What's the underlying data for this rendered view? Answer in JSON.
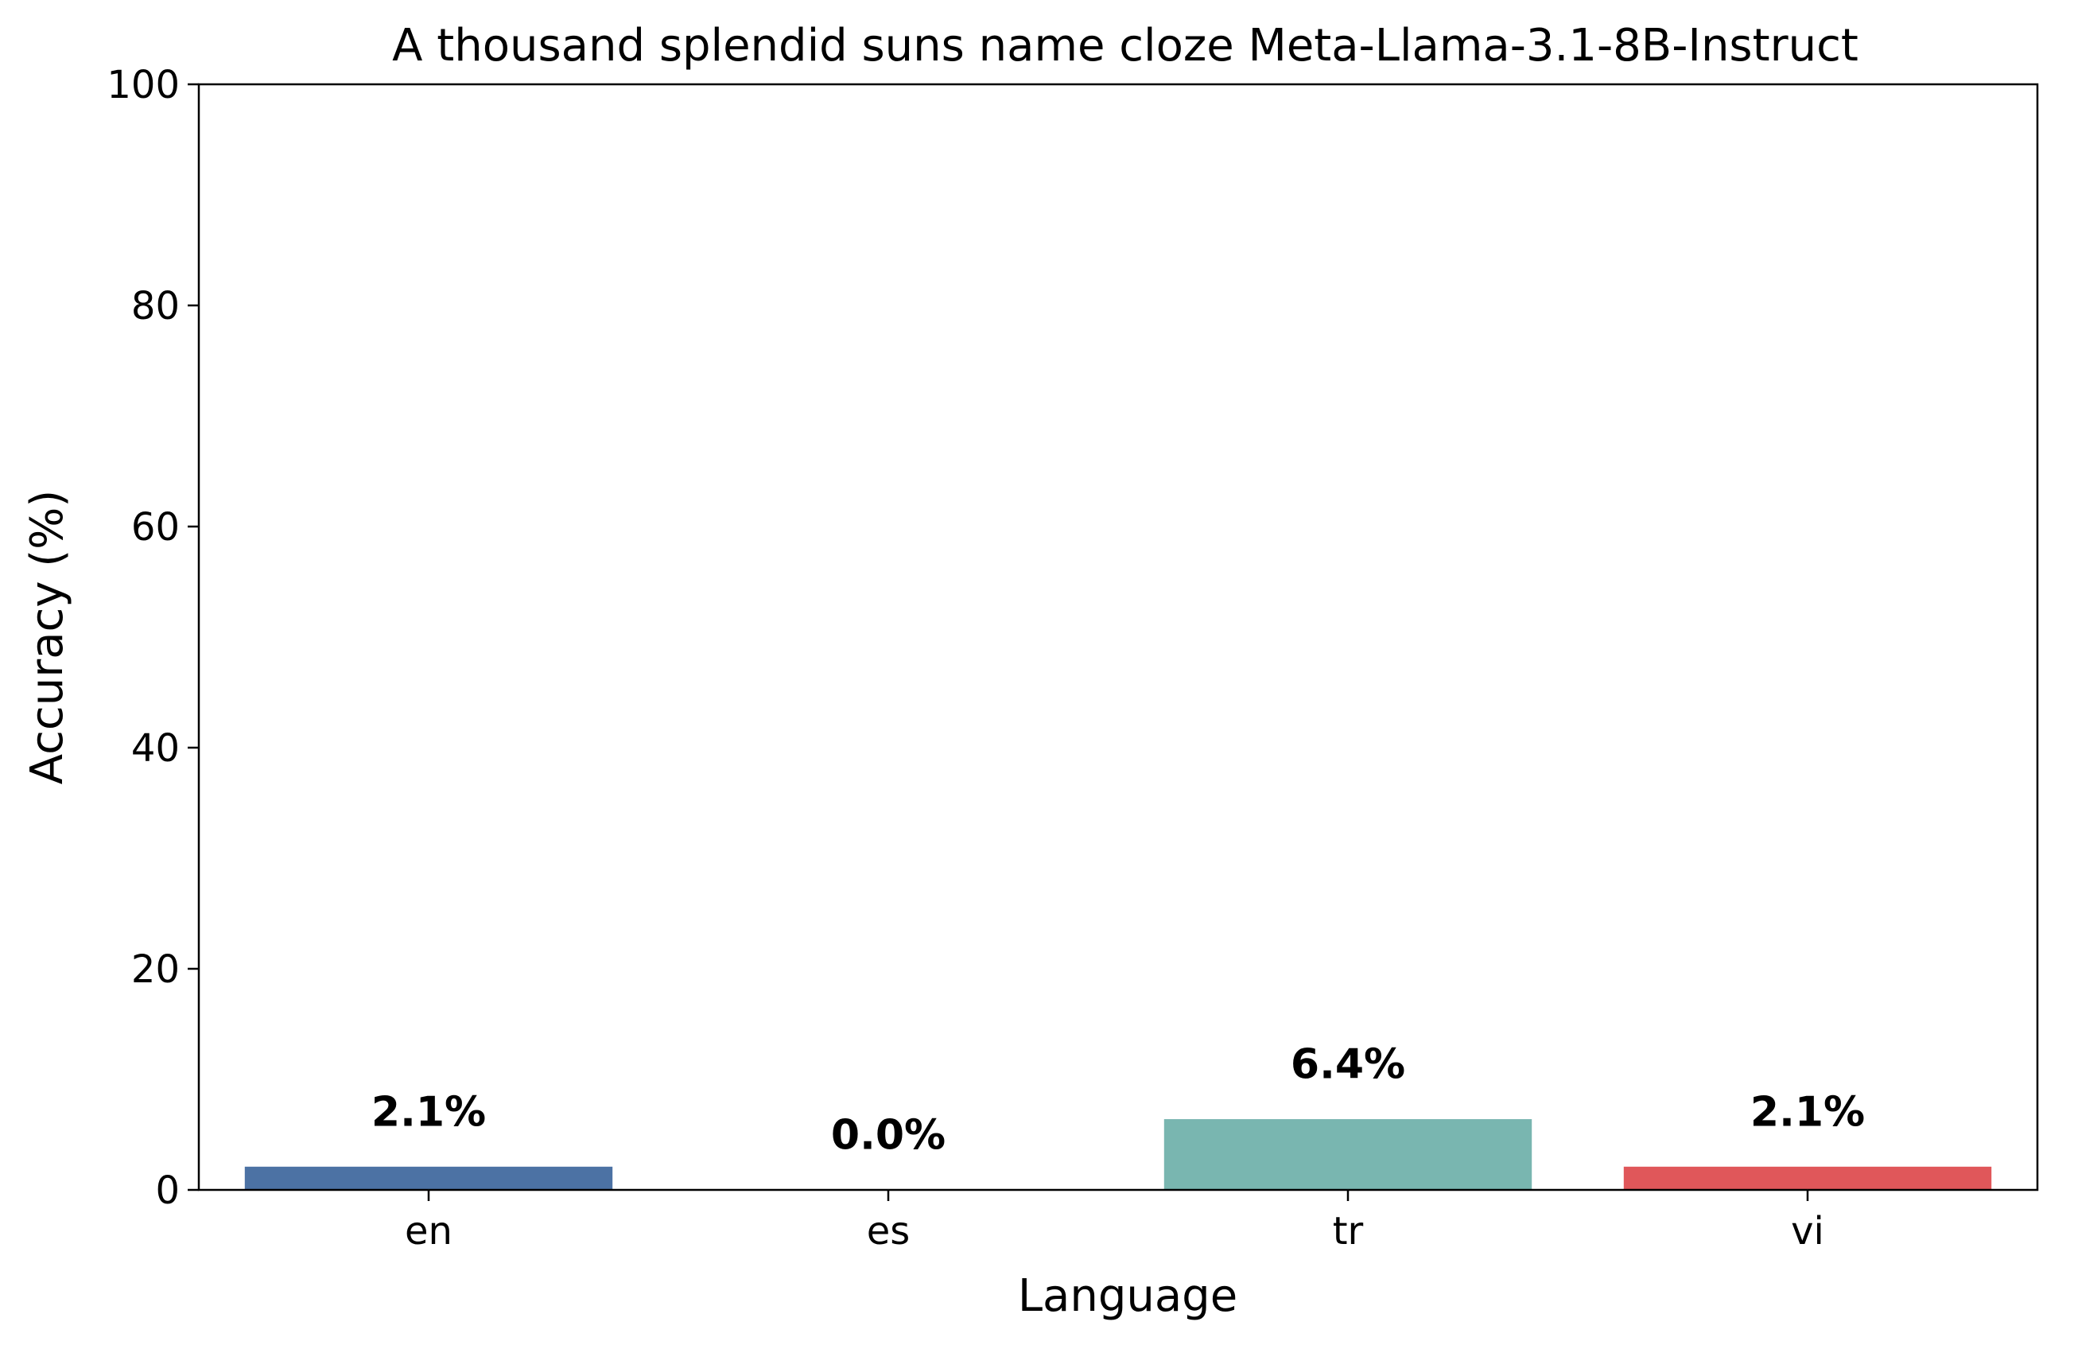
{
  "chart_data": {
    "type": "bar",
    "title": "A thousand splendid suns name cloze Meta-Llama-3.1-8B-Instruct",
    "xlabel": "Language",
    "ylabel": "Accuracy (%)",
    "categories": [
      "en",
      "es",
      "tr",
      "vi"
    ],
    "values": [
      2.1,
      0.0,
      6.4,
      2.1
    ],
    "value_labels": [
      "2.1%",
      "0.0%",
      "6.4%",
      "2.1%"
    ],
    "colors": [
      "#4c72a4",
      "#e07a3a",
      "#79b6b0",
      "#e0575a"
    ],
    "ylim": [
      0,
      100
    ],
    "yticks": [
      "0",
      "20",
      "40",
      "60",
      "80",
      "100"
    ],
    "grid": false,
    "legend": "none"
  }
}
